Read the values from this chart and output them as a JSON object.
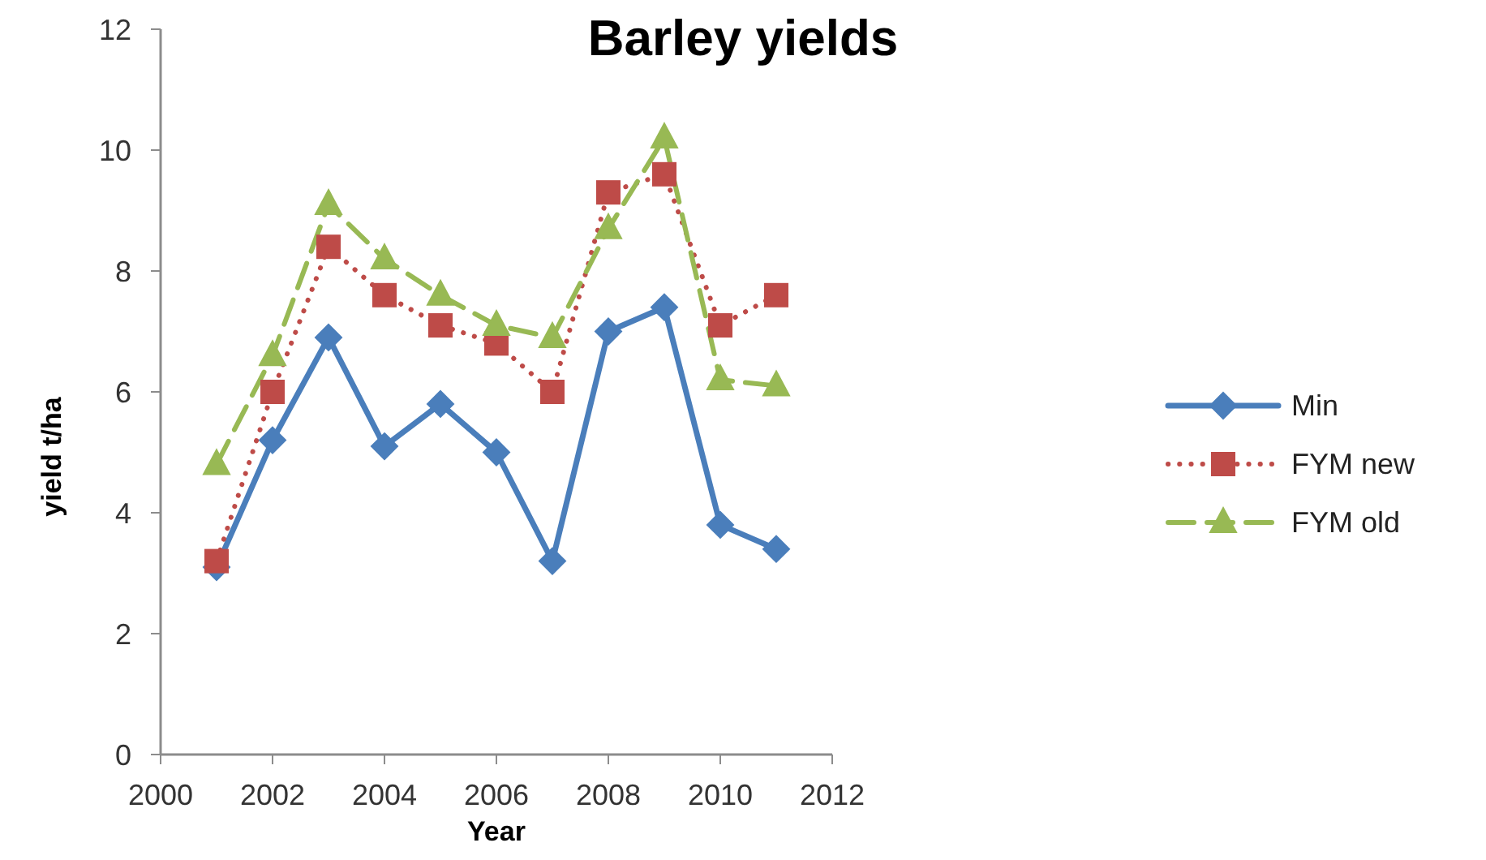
{
  "chart_data": {
    "type": "line",
    "title": "Barley yields",
    "xlabel": "Year",
    "ylabel": "yield t/ha",
    "x": [
      2001,
      2002,
      2003,
      2004,
      2005,
      2006,
      2007,
      2008,
      2009,
      2010,
      2011
    ],
    "series": [
      {
        "name": "Min",
        "color": "#4a7ebb",
        "marker": "diamond",
        "line_style": "solid",
        "values": [
          3.1,
          5.2,
          6.9,
          5.1,
          5.8,
          5.0,
          3.2,
          7.0,
          7.4,
          3.8,
          3.4
        ]
      },
      {
        "name": "FYM new",
        "color": "#be4b48",
        "marker": "square",
        "line_style": "dotted",
        "values": [
          3.2,
          6.0,
          8.4,
          7.6,
          7.1,
          6.8,
          6.0,
          9.3,
          9.6,
          7.1,
          7.6
        ]
      },
      {
        "name": "FYM old",
        "color": "#98b954",
        "marker": "triangle",
        "line_style": "dashed",
        "values": [
          4.8,
          6.6,
          9.1,
          8.2,
          7.6,
          7.1,
          6.9,
          8.7,
          10.2,
          6.2,
          6.1
        ]
      }
    ],
    "xlim": [
      2000,
      2012
    ],
    "xticks": [
      2000,
      2002,
      2004,
      2006,
      2008,
      2010,
      2012
    ],
    "ylim": [
      0,
      12
    ],
    "yticks": [
      0,
      2,
      4,
      6,
      8,
      10,
      12
    ],
    "grid": false,
    "legend": "right"
  }
}
